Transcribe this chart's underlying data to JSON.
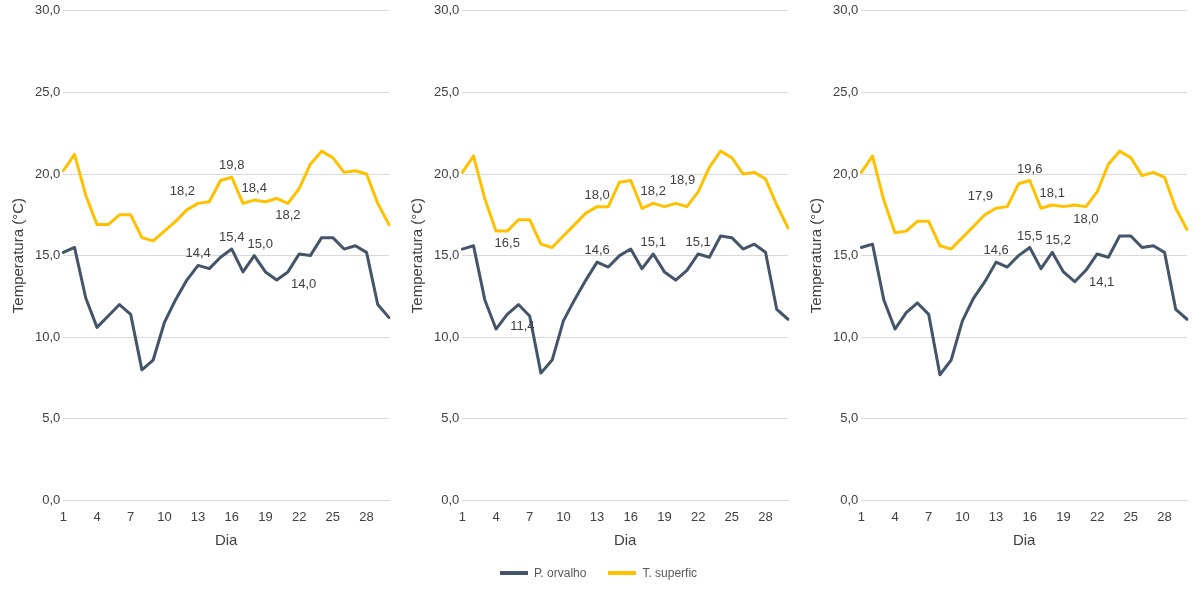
{
  "chart_data": [
    {
      "type": "line",
      "xlabel": "Dia",
      "ylabel": "Temperatura (°C)",
      "categories": [
        "1",
        null,
        null,
        "4",
        null,
        null,
        "7",
        null,
        null,
        "10",
        null,
        null,
        "13",
        null,
        null,
        "16",
        null,
        null,
        "19",
        null,
        null,
        "22",
        null,
        null,
        "25",
        null,
        null,
        "28",
        null,
        null
      ],
      "ylim": [
        0,
        30
      ],
      "yticks": [
        {
          "value": 0,
          "label": "0,0"
        },
        {
          "value": 5,
          "label": "5,0"
        },
        {
          "value": 10,
          "label": "10,0"
        },
        {
          "value": 15,
          "label": "15,0"
        },
        {
          "value": 20,
          "label": "20,0"
        },
        {
          "value": 25,
          "label": "25,0"
        },
        {
          "value": 30,
          "label": "30,0"
        }
      ],
      "grid": "y",
      "marker": "none",
      "line_style": "solid",
      "series": [
        {
          "color": "#44546a",
          "values": [
            15.2,
            15.5,
            12.4,
            10.6,
            11.3,
            12.0,
            11.4,
            8.0,
            8.6,
            10.9,
            12.3,
            13.5,
            14.4,
            14.2,
            14.9,
            15.4,
            14.0,
            15.0,
            14.0,
            13.5,
            14.0,
            15.1,
            15.0,
            16.1,
            16.1,
            15.4,
            15.6,
            15.2,
            12.0,
            11.2
          ],
          "value_labels": [
            null,
            null,
            null,
            null,
            null,
            null,
            null,
            null,
            null,
            null,
            null,
            null,
            "14,4",
            null,
            null,
            "15,4",
            null,
            "15,0",
            null,
            null,
            "14,0",
            null,
            null,
            null,
            null,
            null,
            null,
            null,
            null,
            null
          ]
        },
        {
          "color": "#ffc000",
          "values": [
            20.2,
            21.2,
            18.7,
            16.9,
            16.9,
            17.5,
            17.5,
            16.1,
            15.9,
            16.5,
            17.1,
            17.8,
            18.2,
            18.3,
            19.6,
            19.8,
            18.2,
            18.4,
            18.3,
            18.5,
            18.2,
            19.1,
            20.6,
            21.4,
            21.0,
            20.1,
            20.2,
            20.0,
            18.2,
            16.9
          ],
          "value_labels": [
            null,
            null,
            null,
            null,
            null,
            null,
            null,
            null,
            null,
            null,
            null,
            null,
            "18,2",
            null,
            null,
            "19,8",
            null,
            "18,4",
            null,
            null,
            "18,2",
            null,
            null,
            null,
            null,
            null,
            null,
            null,
            null,
            null
          ]
        }
      ]
    },
    {
      "type": "line",
      "xlabel": "Dia",
      "ylabel": "Temperatura (°C)",
      "categories": [
        "1",
        null,
        null,
        "4",
        null,
        null,
        "7",
        null,
        null,
        "10",
        null,
        null,
        "13",
        null,
        null,
        "16",
        null,
        null,
        "19",
        null,
        null,
        "22",
        null,
        null,
        "25",
        null,
        null,
        "28",
        null,
        null
      ],
      "ylim": [
        0,
        30
      ],
      "yticks": [
        {
          "value": 0,
          "label": "0,0"
        },
        {
          "value": 5,
          "label": "5,0"
        },
        {
          "value": 10,
          "label": "10,0"
        },
        {
          "value": 15,
          "label": "15,0"
        },
        {
          "value": 20,
          "label": "20,0"
        },
        {
          "value": 25,
          "label": "25,0"
        },
        {
          "value": 30,
          "label": "30,0"
        }
      ],
      "grid": "y",
      "marker": "none",
      "line_style": "solid",
      "legend": "bottom",
      "series": [
        {
          "name": "P. orvalho",
          "color": "#44546a",
          "values": [
            15.4,
            15.6,
            12.3,
            10.5,
            11.4,
            12.0,
            11.3,
            7.8,
            8.6,
            11.0,
            12.3,
            13.5,
            14.6,
            14.3,
            15.0,
            15.4,
            14.2,
            15.1,
            14.0,
            13.5,
            14.1,
            15.1,
            14.9,
            16.2,
            16.1,
            15.4,
            15.7,
            15.2,
            11.7,
            11.1
          ],
          "value_labels": [
            null,
            null,
            null,
            null,
            "11,4",
            null,
            null,
            null,
            null,
            null,
            null,
            null,
            "14,6",
            null,
            null,
            null,
            null,
            "15,1",
            null,
            null,
            null,
            "15,1",
            null,
            null,
            null,
            null,
            null,
            null,
            null,
            null
          ]
        },
        {
          "name": "T. superfic",
          "color": "#ffc000",
          "values": [
            20.1,
            21.1,
            18.5,
            16.5,
            16.5,
            17.2,
            17.2,
            15.7,
            15.5,
            16.2,
            16.9,
            17.6,
            18.0,
            18.0,
            19.5,
            19.6,
            17.9,
            18.2,
            18.0,
            18.2,
            18.0,
            18.9,
            20.4,
            21.4,
            21.0,
            20.0,
            20.1,
            19.7,
            18.1,
            16.7
          ],
          "value_labels": [
            null,
            null,
            null,
            null,
            "16,5",
            null,
            null,
            null,
            null,
            null,
            null,
            null,
            "18,0",
            null,
            null,
            null,
            null,
            "18,2",
            null,
            null,
            null,
            "18,9",
            null,
            null,
            null,
            null,
            null,
            null,
            null,
            null
          ]
        }
      ]
    },
    {
      "type": "line",
      "xlabel": "Dia",
      "ylabel": "Temperatura (°C)",
      "categories": [
        "1",
        null,
        null,
        "4",
        null,
        null,
        "7",
        null,
        null,
        "10",
        null,
        null,
        "13",
        null,
        null,
        "16",
        null,
        null,
        "19",
        null,
        null,
        "22",
        null,
        null,
        "25",
        null,
        null,
        "28",
        null,
        null
      ],
      "ylim": [
        0,
        30
      ],
      "yticks": [
        {
          "value": 0,
          "label": "0,0"
        },
        {
          "value": 5,
          "label": "5,0"
        },
        {
          "value": 10,
          "label": "10,0"
        },
        {
          "value": 15,
          "label": "15,0"
        },
        {
          "value": 20,
          "label": "20,0"
        },
        {
          "value": 25,
          "label": "25,0"
        },
        {
          "value": 30,
          "label": "30,0"
        }
      ],
      "grid": "y",
      "marker": "none",
      "line_style": "solid",
      "series": [
        {
          "color": "#44546a",
          "values": [
            15.5,
            15.7,
            12.3,
            10.5,
            11.5,
            12.1,
            11.4,
            7.7,
            8.6,
            11.0,
            12.4,
            13.4,
            14.6,
            14.3,
            15.0,
            15.5,
            14.2,
            15.2,
            14.0,
            13.4,
            14.1,
            15.1,
            14.9,
            16.2,
            16.2,
            15.5,
            15.6,
            15.2,
            11.7,
            11.1
          ],
          "value_labels": [
            null,
            null,
            null,
            null,
            null,
            null,
            null,
            null,
            null,
            null,
            null,
            null,
            "14,6",
            null,
            null,
            "15,5",
            null,
            "15,2",
            null,
            null,
            "14,1",
            null,
            null,
            null,
            null,
            null,
            null,
            null,
            null,
            null
          ]
        },
        {
          "color": "#ffc000",
          "values": [
            20.1,
            21.1,
            18.4,
            16.4,
            16.5,
            17.1,
            17.1,
            15.6,
            15.4,
            16.1,
            16.8,
            17.5,
            17.9,
            18.0,
            19.4,
            19.6,
            17.9,
            18.1,
            18.0,
            18.1,
            18.0,
            18.9,
            20.6,
            21.4,
            21.0,
            19.9,
            20.1,
            19.8,
            17.9,
            16.6
          ],
          "value_labels": [
            null,
            null,
            null,
            null,
            null,
            null,
            null,
            null,
            null,
            null,
            null,
            null,
            "17,9",
            null,
            null,
            "19,6",
            null,
            "18,1",
            null,
            null,
            "18,0",
            null,
            null,
            null,
            null,
            null,
            null,
            null,
            null,
            null
          ]
        }
      ]
    }
  ]
}
